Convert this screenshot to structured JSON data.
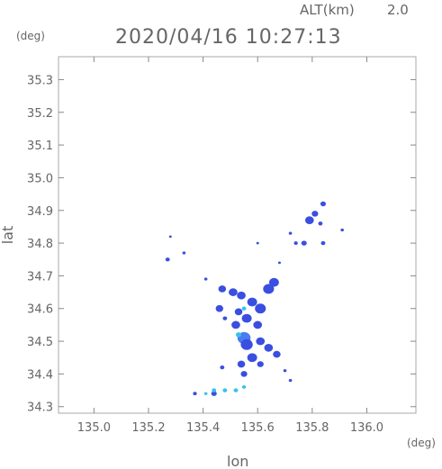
{
  "header": {
    "alt_label": "ALT(km)",
    "alt_value": "2.0",
    "timestamp": "2020/04/16 10:27:13",
    "y_unit": "(deg)",
    "x_unit": "(deg)"
  },
  "chart_data": {
    "type": "heatmap",
    "title": "2020/04/16 10:27:13",
    "xlabel": "lon",
    "ylabel": "lat",
    "xlim": [
      134.87,
      136.18
    ],
    "ylim": [
      34.28,
      35.37
    ],
    "x_ticks": [
      135.0,
      135.2,
      135.4,
      135.6,
      135.8,
      136.0
    ],
    "x_tick_labels": [
      "135.0",
      "135.2",
      "135.4",
      "135.6",
      "135.8",
      "136.0"
    ],
    "y_ticks": [
      34.3,
      34.4,
      34.5,
      34.6,
      34.7,
      34.8,
      34.9,
      35.0,
      35.1,
      35.2,
      35.3
    ],
    "y_tick_labels": [
      "34.3",
      "34.4",
      "34.5",
      "34.6",
      "34.7",
      "34.8",
      "34.9",
      "35.0",
      "35.1",
      "35.2",
      "35.3"
    ],
    "grid": false,
    "colors": {
      "weak": "#3a4fe0",
      "moderate": "#4a7cf0",
      "strong": "#36c2e8",
      "frame": "#aaaaaa"
    },
    "cells": [
      {
        "lon": 135.84,
        "lat": 34.92,
        "r": 0.01,
        "level": "weak"
      },
      {
        "lon": 135.81,
        "lat": 34.89,
        "r": 0.012,
        "level": "weak"
      },
      {
        "lon": 135.79,
        "lat": 34.87,
        "r": 0.016,
        "level": "weak"
      },
      {
        "lon": 135.83,
        "lat": 34.86,
        "r": 0.008,
        "level": "weak"
      },
      {
        "lon": 135.91,
        "lat": 34.84,
        "r": 0.006,
        "level": "weak"
      },
      {
        "lon": 135.72,
        "lat": 34.83,
        "r": 0.006,
        "level": "weak"
      },
      {
        "lon": 135.74,
        "lat": 34.8,
        "r": 0.007,
        "level": "weak"
      },
      {
        "lon": 135.77,
        "lat": 34.8,
        "r": 0.01,
        "level": "weak"
      },
      {
        "lon": 135.84,
        "lat": 34.8,
        "r": 0.008,
        "level": "weak"
      },
      {
        "lon": 135.27,
        "lat": 34.75,
        "r": 0.008,
        "level": "weak"
      },
      {
        "lon": 135.33,
        "lat": 34.77,
        "r": 0.006,
        "level": "weak"
      },
      {
        "lon": 135.28,
        "lat": 34.82,
        "r": 0.003,
        "level": "weak"
      },
      {
        "lon": 135.6,
        "lat": 34.8,
        "r": 0.004,
        "level": "weak"
      },
      {
        "lon": 135.41,
        "lat": 34.69,
        "r": 0.006,
        "level": "weak"
      },
      {
        "lon": 135.68,
        "lat": 34.74,
        "r": 0.004,
        "level": "weak"
      },
      {
        "lon": 135.66,
        "lat": 34.68,
        "r": 0.018,
        "level": "weak"
      },
      {
        "lon": 135.64,
        "lat": 34.66,
        "r": 0.02,
        "level": "weak"
      },
      {
        "lon": 135.47,
        "lat": 34.66,
        "r": 0.014,
        "level": "weak"
      },
      {
        "lon": 135.51,
        "lat": 34.65,
        "r": 0.016,
        "level": "weak"
      },
      {
        "lon": 135.54,
        "lat": 34.64,
        "r": 0.016,
        "level": "weak"
      },
      {
        "lon": 135.58,
        "lat": 34.62,
        "r": 0.018,
        "level": "weak"
      },
      {
        "lon": 135.61,
        "lat": 34.6,
        "r": 0.02,
        "level": "weak"
      },
      {
        "lon": 135.46,
        "lat": 34.6,
        "r": 0.014,
        "level": "weak"
      },
      {
        "lon": 135.53,
        "lat": 34.59,
        "r": 0.014,
        "level": "weak"
      },
      {
        "lon": 135.56,
        "lat": 34.57,
        "r": 0.018,
        "level": "weak"
      },
      {
        "lon": 135.52,
        "lat": 34.55,
        "r": 0.016,
        "level": "weak"
      },
      {
        "lon": 135.6,
        "lat": 34.55,
        "r": 0.016,
        "level": "weak"
      },
      {
        "lon": 135.48,
        "lat": 34.57,
        "r": 0.008,
        "level": "weak"
      },
      {
        "lon": 135.55,
        "lat": 34.51,
        "r": 0.024,
        "level": "moderate"
      },
      {
        "lon": 135.56,
        "lat": 34.49,
        "r": 0.022,
        "level": "weak"
      },
      {
        "lon": 135.61,
        "lat": 34.5,
        "r": 0.016,
        "level": "weak"
      },
      {
        "lon": 135.64,
        "lat": 34.48,
        "r": 0.016,
        "level": "weak"
      },
      {
        "lon": 135.67,
        "lat": 34.46,
        "r": 0.014,
        "level": "weak"
      },
      {
        "lon": 135.58,
        "lat": 34.45,
        "r": 0.018,
        "level": "weak"
      },
      {
        "lon": 135.54,
        "lat": 34.43,
        "r": 0.014,
        "level": "weak"
      },
      {
        "lon": 135.61,
        "lat": 34.43,
        "r": 0.012,
        "level": "weak"
      },
      {
        "lon": 135.55,
        "lat": 34.4,
        "r": 0.012,
        "level": "weak"
      },
      {
        "lon": 135.47,
        "lat": 34.42,
        "r": 0.008,
        "level": "weak"
      },
      {
        "lon": 135.7,
        "lat": 34.41,
        "r": 0.006,
        "level": "weak"
      },
      {
        "lon": 135.72,
        "lat": 34.38,
        "r": 0.006,
        "level": "weak"
      },
      {
        "lon": 135.44,
        "lat": 34.34,
        "r": 0.01,
        "level": "weak"
      },
      {
        "lon": 135.37,
        "lat": 34.34,
        "r": 0.007,
        "level": "weak"
      },
      {
        "lon": 135.53,
        "lat": 34.52,
        "r": 0.01,
        "level": "strong"
      },
      {
        "lon": 135.55,
        "lat": 34.6,
        "r": 0.008,
        "level": "strong"
      },
      {
        "lon": 135.44,
        "lat": 34.35,
        "r": 0.008,
        "level": "strong"
      },
      {
        "lon": 135.48,
        "lat": 34.35,
        "r": 0.008,
        "level": "strong"
      },
      {
        "lon": 135.52,
        "lat": 34.35,
        "r": 0.008,
        "level": "strong"
      },
      {
        "lon": 135.55,
        "lat": 34.36,
        "r": 0.007,
        "level": "strong"
      },
      {
        "lon": 135.41,
        "lat": 34.34,
        "r": 0.006,
        "level": "strong"
      }
    ]
  }
}
